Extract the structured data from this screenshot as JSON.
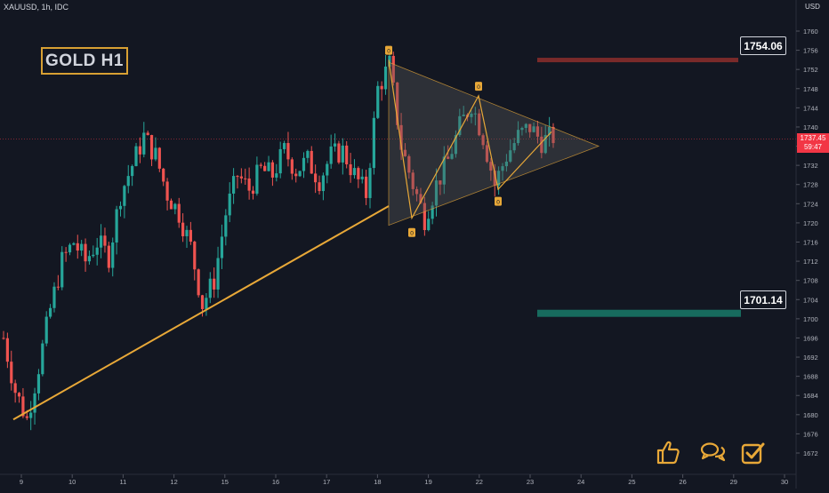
{
  "header": {
    "symbol": "XAUUSD, 1h, IDC",
    "currency": "USD"
  },
  "annotations": {
    "title": "GOLD H1",
    "resistance_label": "1754.06",
    "support_label": "1701.14",
    "current_price": "1737.45",
    "countdown": "59:47",
    "wave_markers": [
      "0",
      "0",
      "0",
      "0"
    ]
  },
  "colors": {
    "background": "#131722",
    "up_candle": "#26a69a",
    "down_candle": "#ef5350",
    "trendline": "#e8a838",
    "triangle_fill": "#5a5a5a",
    "resistance_zone": "#7a2a2a",
    "support_zone": "#176b5e",
    "price_line": "#f23645"
  },
  "icons": [
    "thumbs-up-icon",
    "comments-icon",
    "checkmark-icon"
  ],
  "chart_data": {
    "type": "candlestick",
    "x_ticks": [
      "9",
      "10",
      "11",
      "12",
      "15",
      "16",
      "17",
      "18",
      "19",
      "22",
      "23",
      "24",
      "25",
      "26",
      "29",
      "30"
    ],
    "y_ticks": [
      1672,
      1676,
      1680,
      1684,
      1688,
      1692,
      1696,
      1700,
      1704,
      1708,
      1712,
      1716,
      1720,
      1724,
      1728,
      1732,
      1736,
      1740,
      1744,
      1748,
      1752,
      1756,
      1760
    ],
    "ylim": [
      1670,
      1764
    ],
    "approx_close_path": [
      [
        0,
        1696
      ],
      [
        3,
        1685
      ],
      [
        6,
        1679
      ],
      [
        9,
        1690
      ],
      [
        12,
        1702
      ],
      [
        15,
        1712
      ],
      [
        18,
        1716
      ],
      [
        21,
        1712
      ],
      [
        24,
        1716
      ],
      [
        27,
        1713
      ],
      [
        30,
        1726
      ],
      [
        33,
        1732
      ],
      [
        36,
        1738
      ],
      [
        39,
        1734
      ],
      [
        42,
        1726
      ],
      [
        45,
        1722
      ],
      [
        48,
        1715
      ],
      [
        51,
        1703
      ],
      [
        54,
        1708
      ],
      [
        57,
        1722
      ],
      [
        60,
        1730
      ],
      [
        63,
        1727
      ],
      [
        66,
        1731
      ],
      [
        69,
        1730
      ],
      [
        72,
        1735
      ],
      [
        75,
        1731
      ],
      [
        78,
        1733
      ],
      [
        81,
        1729
      ],
      [
        84,
        1734
      ],
      [
        87,
        1735
      ],
      [
        90,
        1730
      ],
      [
        93,
        1726
      ],
      [
        96,
        1748
      ],
      [
        99,
        1753
      ],
      [
        102,
        1736
      ],
      [
        105,
        1728
      ],
      [
        108,
        1721
      ],
      [
        111,
        1728
      ],
      [
        114,
        1733
      ],
      [
        117,
        1740
      ],
      [
        120,
        1745
      ],
      [
        123,
        1738
      ],
      [
        126,
        1728
      ],
      [
        129,
        1734
      ],
      [
        132,
        1738
      ],
      [
        135,
        1740
      ],
      [
        138,
        1737
      ],
      [
        141,
        1738
      ]
    ],
    "pattern": {
      "name": "symmetrical triangle",
      "resistance_zone": 1754.06,
      "support_zone": 1701.14,
      "current_price": 1737.45
    }
  }
}
